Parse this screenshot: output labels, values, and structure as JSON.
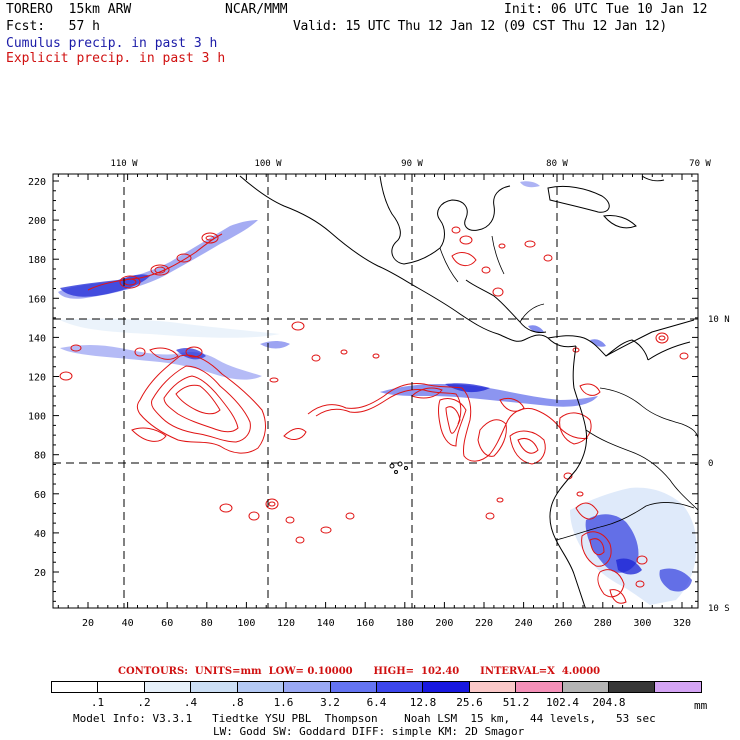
{
  "header": {
    "title": "TORERO  15km ARW",
    "org": "NCAR/MMM",
    "init": "Init: 06 UTC Tue 10 Jan 12",
    "fcst": "Fcst:   57 h",
    "valid": "Valid: 15 UTC Thu 12 Jan 12 (09 CST Thu 12 Jan 12)",
    "legend_cumulus": "Cumulus precip. in past 3 h",
    "legend_explicit": "Explicit precip. in past 3 h"
  },
  "map": {
    "lon_labels": [
      "110 W",
      "100 W",
      "90 W",
      "80 W",
      "70 W"
    ],
    "lat_labels": [
      "10 N",
      "0",
      "10 S"
    ],
    "x_ticks": [
      "20",
      "40",
      "60",
      "80",
      "100",
      "120",
      "140",
      "160",
      "180",
      "200",
      "220",
      "240",
      "260",
      "280",
      "300",
      "320"
    ],
    "y_ticks": [
      "20",
      "40",
      "60",
      "80",
      "100",
      "120",
      "140",
      "160",
      "180",
      "200",
      "220"
    ],
    "colors": {
      "cumulus": "#3a46e0",
      "explicit": "#e01414",
      "coast": "#000000",
      "grid": "#000000"
    }
  },
  "contours": {
    "text": "CONTOURS:  UNITS=mm  LOW= 0.10000      HIGH=  102.40      INTERVAL=X  4.0000"
  },
  "colorbar": {
    "labels": [
      ".1",
      ".2",
      ".4",
      ".8",
      "1.6",
      "3.2",
      "6.4",
      "12.8",
      "25.6",
      "51.2",
      "102.4",
      "204.8"
    ],
    "unit": "mm",
    "colors": [
      "#ffffff",
      "#ffffff",
      "#e6f0fa",
      "#ccdff5",
      "#b4c9f4",
      "#9aa9f4",
      "#6474f2",
      "#3c46ec",
      "#1818e0",
      "#fac8c8",
      "#f490b8",
      "#b4b4b4",
      "#383838",
      "#d4a4f4"
    ]
  },
  "footer": {
    "line1": "Model Info: V3.3.1   Tiedtke YSU PBL  Thompson    Noah LSM  15 km,   44 levels,   53 sec",
    "line2": "LW: Godd SW: Goddard DIFF: simple KM: 2D Smagor"
  }
}
